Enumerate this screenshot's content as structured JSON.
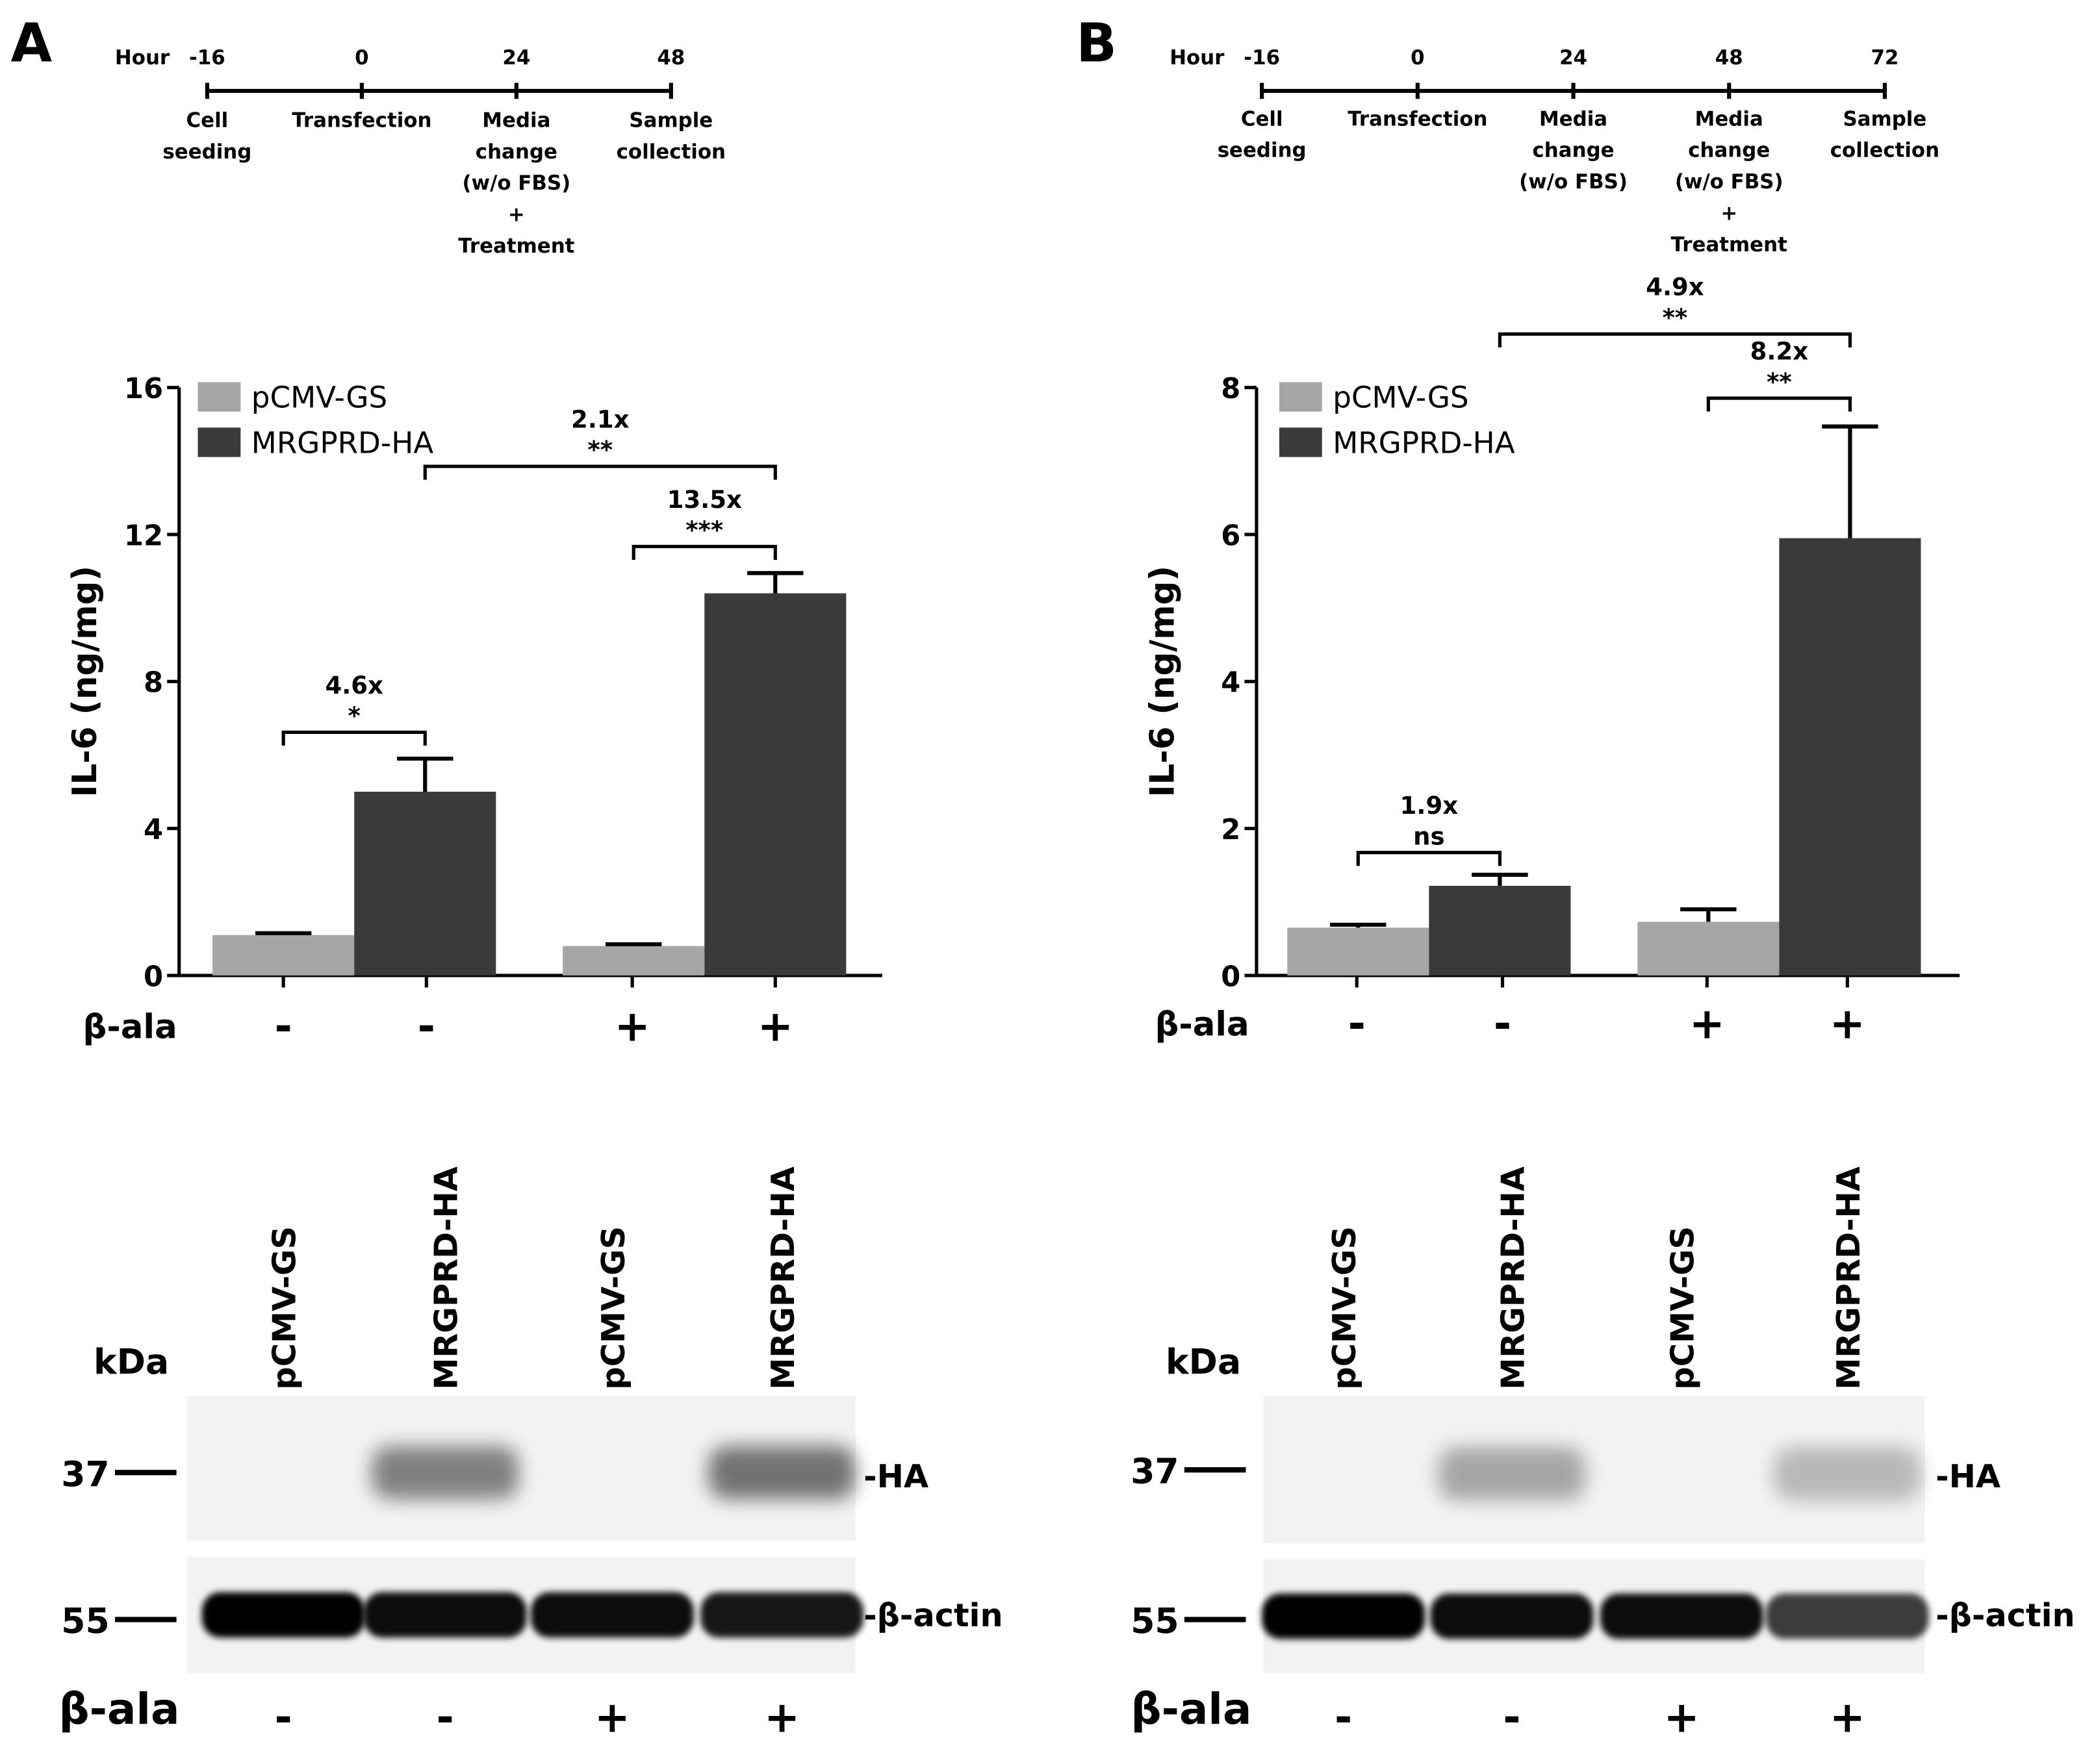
{
  "panels": [
    {
      "letter": "A",
      "timeline": {
        "unit_label": "Hour",
        "ticks": [
          {
            "hour": "-16",
            "label": [
              "Cell",
              "seeding"
            ]
          },
          {
            "hour": "0",
            "label": [
              "Transfection"
            ]
          },
          {
            "hour": "24",
            "label": [
              "Media",
              "change",
              "(w/o FBS)",
              "+",
              "Treatment"
            ]
          },
          {
            "hour": "48",
            "label": [
              "Sample",
              "collection"
            ]
          }
        ]
      },
      "chart_data": {
        "type": "bar",
        "ylabel": "IL-6 (ng/mg)",
        "ylim": [
          0,
          16
        ],
        "yticks": [
          0,
          4,
          8,
          12,
          16
        ],
        "xlabel": "β-ala",
        "treatment_signs": [
          "-",
          "-",
          "+",
          "+"
        ],
        "legend": {
          "position": "top-left"
        },
        "series": [
          {
            "name": "pCMV-GS",
            "color": "#a6a6a6",
            "values": [
              1.1,
              0.8
            ],
            "errors": [
              0.05,
              0.05
            ]
          },
          {
            "name": "MRGPRD-HA",
            "color": "#3a3a3a",
            "values": [
              5.0,
              10.4
            ],
            "errors": [
              0.9,
              0.55
            ]
          }
        ],
        "annotations": [
          {
            "fold": "4.6x",
            "sig": "*",
            "from_bar": 0,
            "to_bar": 1
          },
          {
            "fold": "13.5x",
            "sig": "***",
            "from_bar": 2,
            "to_bar": 3
          },
          {
            "fold": "2.1x",
            "sig": "**",
            "from_bar": 1,
            "to_bar": 3
          }
        ]
      },
      "blot": {
        "lanes": [
          "pCMV-GS",
          "MRGPRD-HA",
          "pCMV-GS",
          "MRGPRD-HA"
        ],
        "kda_label": "kDa",
        "markers": [
          "37",
          "55"
        ],
        "bands": [
          "-HA",
          "-β-actin"
        ],
        "ala_label": "β-ala",
        "signs": [
          "-",
          "-",
          "+",
          "+"
        ]
      }
    },
    {
      "letter": "B",
      "timeline": {
        "unit_label": "Hour",
        "ticks": [
          {
            "hour": "-16",
            "label": [
              "Cell",
              "seeding"
            ]
          },
          {
            "hour": "0",
            "label": [
              "Transfection"
            ]
          },
          {
            "hour": "24",
            "label": [
              "Media",
              "change",
              "(w/o FBS)"
            ]
          },
          {
            "hour": "48",
            "label": [
              "Media",
              "change",
              "(w/o FBS)",
              "+",
              "Treatment"
            ]
          },
          {
            "hour": "72",
            "label": [
              "Sample",
              "collection"
            ]
          }
        ]
      },
      "chart_data": {
        "type": "bar",
        "ylabel": "IL-6 (ng/mg)",
        "ylim": [
          0,
          8
        ],
        "yticks": [
          0,
          2,
          4,
          6,
          8
        ],
        "xlabel": "β-ala",
        "treatment_signs": [
          "-",
          "-",
          "+",
          "+"
        ],
        "legend": {
          "position": "top-left"
        },
        "series": [
          {
            "name": "pCMV-GS",
            "color": "#a6a6a6",
            "values": [
              0.65,
              0.73
            ],
            "errors": [
              0.04,
              0.17
            ]
          },
          {
            "name": "MRGPRD-HA",
            "color": "#3a3a3a",
            "values": [
              1.22,
              5.95
            ],
            "errors": [
              0.15,
              1.52
            ]
          }
        ],
        "annotations": [
          {
            "fold": "1.9x",
            "sig": "ns",
            "from_bar": 0,
            "to_bar": 1
          },
          {
            "fold": "8.2x",
            "sig": "**",
            "from_bar": 2,
            "to_bar": 3
          },
          {
            "fold": "4.9x",
            "sig": "**",
            "from_bar": 1,
            "to_bar": 3
          }
        ]
      },
      "blot": {
        "lanes": [
          "pCMV-GS",
          "MRGPRD-HA",
          "pCMV-GS",
          "MRGPRD-HA"
        ],
        "kda_label": "kDa",
        "markers": [
          "37",
          "55"
        ],
        "bands": [
          "-HA",
          "-β-actin"
        ],
        "ala_label": "β-ala",
        "signs": [
          "-",
          "-",
          "+",
          "+"
        ]
      }
    }
  ]
}
